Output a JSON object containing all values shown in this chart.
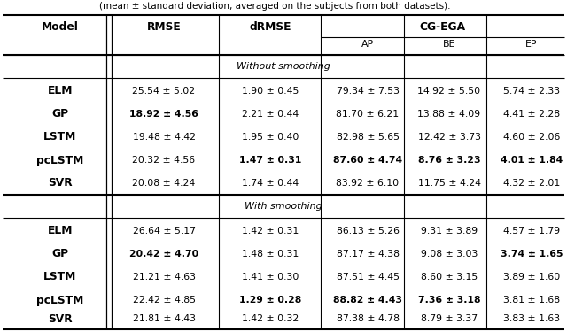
{
  "caption": "(mean ± standard deviation, averaged on the subjects from both datasets).",
  "section1_label": "Without smoothing",
  "section2_label": "With smoothing",
  "rows_no_smooth": [
    {
      "model": "ELM",
      "rmse": "25.54 ± 5.02",
      "drmse": "1.90 ± 0.45",
      "ap": "79.34 ± 7.53",
      "be": "14.92 ± 5.50",
      "ep": "5.74 ± 2.33",
      "bold_rmse": false,
      "bold_drmse": false,
      "bold_ap": false,
      "bold_be": false,
      "bold_ep": false
    },
    {
      "model": "GP",
      "rmse": "18.92 ± 4.56",
      "drmse": "2.21 ± 0.44",
      "ap": "81.70 ± 6.21",
      "be": "13.88 ± 4.09",
      "ep": "4.41 ± 2.28",
      "bold_rmse": true,
      "bold_drmse": false,
      "bold_ap": false,
      "bold_be": false,
      "bold_ep": false
    },
    {
      "model": "LSTM",
      "rmse": "19.48 ± 4.42",
      "drmse": "1.95 ± 0.40",
      "ap": "82.98 ± 5.65",
      "be": "12.42 ± 3.73",
      "ep": "4.60 ± 2.06",
      "bold_rmse": false,
      "bold_drmse": false,
      "bold_ap": false,
      "bold_be": false,
      "bold_ep": false
    },
    {
      "model": "pcLSTM",
      "rmse": "20.32 ± 4.56",
      "drmse": "1.47 ± 0.31",
      "ap": "87.60 ± 4.74",
      "be": "8.76 ± 3.23",
      "ep": "4.01 ± 1.84",
      "bold_rmse": false,
      "bold_drmse": true,
      "bold_ap": true,
      "bold_be": true,
      "bold_ep": true
    },
    {
      "model": "SVR",
      "rmse": "20.08 ± 4.24",
      "drmse": "1.74 ± 0.44",
      "ap": "83.92 ± 6.10",
      "be": "11.75 ± 4.24",
      "ep": "4.32 ± 2.01",
      "bold_rmse": false,
      "bold_drmse": false,
      "bold_ap": false,
      "bold_be": false,
      "bold_ep": false
    }
  ],
  "rows_smooth": [
    {
      "model": "ELM",
      "rmse": "26.64 ± 5.17",
      "drmse": "1.42 ± 0.31",
      "ap": "86.13 ± 5.26",
      "be": "9.31 ± 3.89",
      "ep": "4.57 ± 1.79",
      "bold_rmse": false,
      "bold_drmse": false,
      "bold_ap": false,
      "bold_be": false,
      "bold_ep": false
    },
    {
      "model": "GP",
      "rmse": "20.42 ± 4.70",
      "drmse": "1.48 ± 0.31",
      "ap": "87.17 ± 4.38",
      "be": "9.08 ± 3.03",
      "ep": "3.74 ± 1.65",
      "bold_rmse": true,
      "bold_drmse": false,
      "bold_ap": false,
      "bold_be": false,
      "bold_ep": true
    },
    {
      "model": "LSTM",
      "rmse": "21.21 ± 4.63",
      "drmse": "1.41 ± 0.30",
      "ap": "87.51 ± 4.45",
      "be": "8.60 ± 3.15",
      "ep": "3.89 ± 1.60",
      "bold_rmse": false,
      "bold_drmse": false,
      "bold_ap": false,
      "bold_be": false,
      "bold_ep": false
    },
    {
      "model": "pcLSTM",
      "rmse": "22.42 ± 4.85",
      "drmse": "1.29 ± 0.28",
      "ap": "88.82 ± 4.43",
      "be": "7.36 ± 3.18",
      "ep": "3.81 ± 1.68",
      "bold_rmse": false,
      "bold_drmse": true,
      "bold_ap": true,
      "bold_be": true,
      "bold_ep": false
    },
    {
      "model": "SVR",
      "rmse": "21.81 ± 4.43",
      "drmse": "1.42 ± 0.32",
      "ap": "87.38 ± 4.78",
      "be": "8.79 ± 3.37",
      "ep": "3.83 ± 1.63",
      "bold_rmse": false,
      "bold_drmse": false,
      "bold_ap": false,
      "bold_be": false,
      "bold_ep": false
    }
  ],
  "bg_color": "#ffffff",
  "text_color": "#000000",
  "font_size": 7.8
}
